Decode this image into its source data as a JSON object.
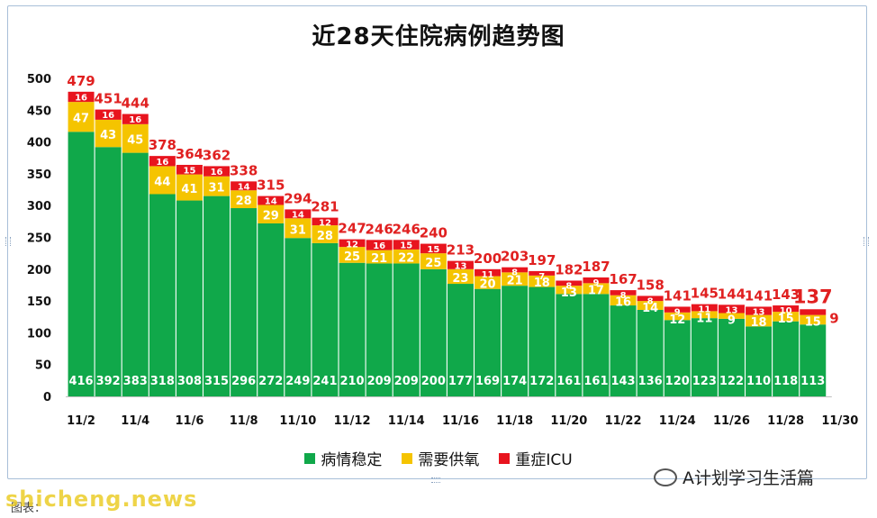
{
  "chart_data": {
    "type": "bar",
    "stacked": true,
    "title": "近28天住院病例趋势图",
    "categories": [
      "11/2",
      "11/3",
      "11/4",
      "11/5",
      "11/6",
      "11/7",
      "11/8",
      "11/9",
      "11/10",
      "11/11",
      "11/12",
      "11/13",
      "11/14",
      "11/15",
      "11/16",
      "11/17",
      "11/18",
      "11/19",
      "11/20",
      "11/21",
      "11/22",
      "11/23",
      "11/24",
      "11/25",
      "11/26",
      "11/27",
      "11/28",
      "11/29"
    ],
    "x_tick_labels": [
      "11/2",
      "11/4",
      "11/6",
      "11/8",
      "11/10",
      "11/12",
      "11/14",
      "11/16",
      "11/18",
      "11/20",
      "11/22",
      "11/24",
      "11/26",
      "11/28",
      "11/30"
    ],
    "series": [
      {
        "name": "病情稳定",
        "color": "#10a84a",
        "values": [
          416,
          392,
          383,
          318,
          308,
          315,
          296,
          272,
          249,
          241,
          210,
          209,
          209,
          200,
          177,
          169,
          174,
          172,
          161,
          161,
          143,
          136,
          120,
          123,
          122,
          110,
          118,
          113
        ]
      },
      {
        "name": "需要供氧",
        "color": "#f5c400",
        "values": [
          47,
          43,
          45,
          44,
          41,
          31,
          28,
          29,
          31,
          28,
          25,
          21,
          22,
          25,
          23,
          20,
          21,
          18,
          13,
          17,
          16,
          14,
          12,
          11,
          9,
          18,
          15,
          15
        ]
      },
      {
        "name": "重症ICU",
        "color": "#e8141e",
        "values": [
          16,
          16,
          16,
          16,
          15,
          16,
          14,
          14,
          14,
          12,
          12,
          16,
          15,
          15,
          13,
          11,
          8,
          7,
          8,
          9,
          8,
          8,
          9,
          11,
          13,
          13,
          10,
          9
        ]
      }
    ],
    "totals": [
      479,
      451,
      444,
      378,
      364,
      362,
      338,
      315,
      294,
      281,
      247,
      246,
      246,
      240,
      213,
      200,
      203,
      197,
      182,
      187,
      167,
      158,
      141,
      145,
      144,
      141,
      143,
      137
    ],
    "ylim": [
      0,
      500
    ],
    "y_ticks": [
      0,
      50,
      100,
      150,
      200,
      250,
      300,
      350,
      400,
      450,
      500
    ],
    "xlabel": "",
    "ylabel": "",
    "grid": false,
    "legend_position": "bottom"
  },
  "legend": [
    "病情稳定",
    "需要供氧",
    "重症ICU"
  ],
  "wechat_text": "A计划学习生活篇",
  "source_note": "图表：",
  "watermark": "shicheng.news"
}
